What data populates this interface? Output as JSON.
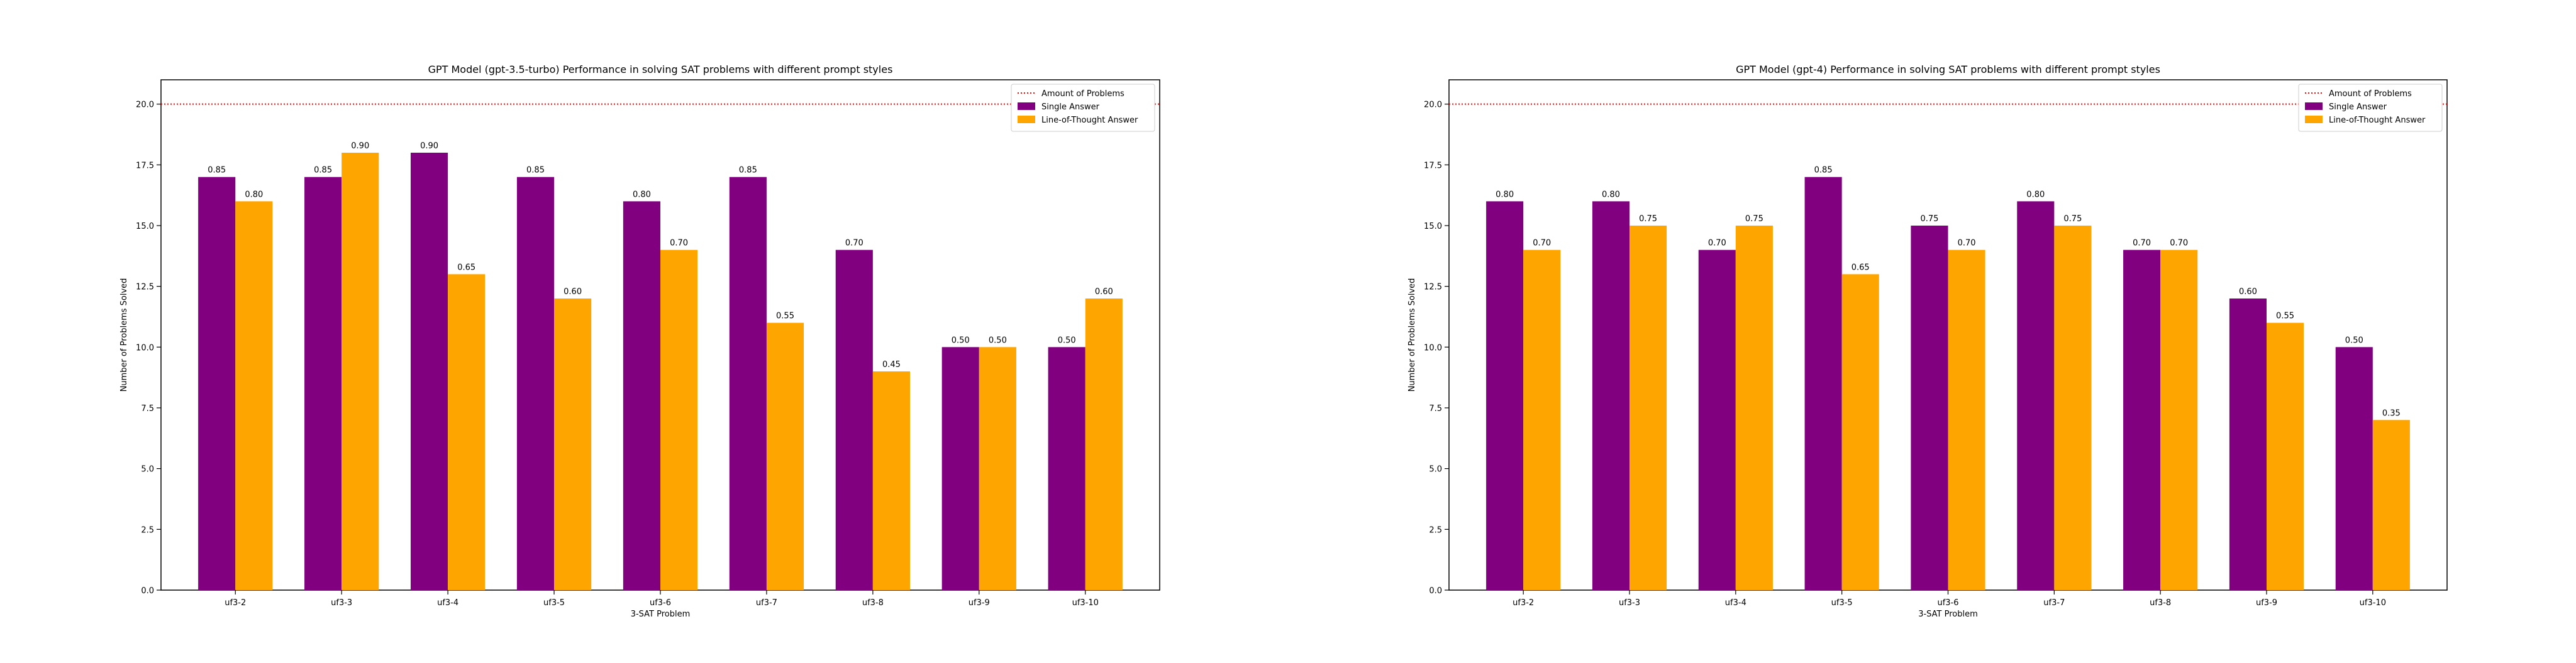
{
  "chart_data": [
    {
      "type": "bar",
      "title": "GPT Model (gpt-3.5-turbo) Performance in solving SAT problems with different prompt styles",
      "xlabel": "3-SAT Problem",
      "ylabel": "Number of Problems Solved",
      "categories": [
        "uf3-2",
        "uf3-3",
        "uf3-4",
        "uf3-5",
        "uf3-6",
        "uf3-7",
        "uf3-8",
        "uf3-9",
        "uf3-10"
      ],
      "series": [
        {
          "name": "Single Answer",
          "color": "#800080",
          "values": [
            17,
            17,
            18,
            17,
            16,
            17,
            14,
            10,
            10
          ],
          "labels": [
            "0.85",
            "0.85",
            "0.90",
            "0.85",
            "0.80",
            "0.85",
            "0.70",
            "0.50",
            "0.50"
          ]
        },
        {
          "name": "Line-of-Thought Answer",
          "color": "#ffa500",
          "values": [
            16,
            18,
            13,
            12,
            14,
            11,
            9,
            10,
            12
          ],
          "labels": [
            "0.80",
            "0.90",
            "0.65",
            "0.60",
            "0.70",
            "0.55",
            "0.45",
            "0.50",
            "0.60"
          ]
        }
      ],
      "reference_line": {
        "name": "Amount of Problems",
        "value": 20,
        "color": "#ff0000",
        "style": "dotted"
      },
      "ylim": [
        0,
        21
      ],
      "yticks": [
        "0.0",
        "2.5",
        "5.0",
        "7.5",
        "10.0",
        "12.5",
        "15.0",
        "17.5",
        "20.0"
      ],
      "grid": false,
      "legend": "top-right"
    },
    {
      "type": "bar",
      "title": "GPT Model (gpt-4) Performance in solving SAT problems with different prompt styles",
      "xlabel": "3-SAT Problem",
      "ylabel": "Number of Problems Solved",
      "categories": [
        "uf3-2",
        "uf3-3",
        "uf3-4",
        "uf3-5",
        "uf3-6",
        "uf3-7",
        "uf3-8",
        "uf3-9",
        "uf3-10"
      ],
      "series": [
        {
          "name": "Single Answer",
          "color": "#800080",
          "values": [
            16,
            16,
            14,
            17,
            15,
            16,
            14,
            12,
            10
          ],
          "labels": [
            "0.80",
            "0.80",
            "0.70",
            "0.85",
            "0.75",
            "0.80",
            "0.70",
            "0.60",
            "0.50"
          ]
        },
        {
          "name": "Line-of-Thought Answer",
          "color": "#ffa500",
          "values": [
            14,
            15,
            15,
            13,
            14,
            15,
            14,
            11,
            7
          ],
          "labels": [
            "0.70",
            "0.75",
            "0.75",
            "0.65",
            "0.70",
            "0.75",
            "0.70",
            "0.55",
            "0.35"
          ]
        }
      ],
      "reference_line": {
        "name": "Amount of Problems",
        "value": 20,
        "color": "#ff0000",
        "style": "dotted"
      },
      "ylim": [
        0,
        21
      ],
      "yticks": [
        "0.0",
        "2.5",
        "5.0",
        "7.5",
        "10.0",
        "12.5",
        "15.0",
        "17.5",
        "20.0"
      ],
      "grid": false,
      "legend": "top-right"
    }
  ]
}
